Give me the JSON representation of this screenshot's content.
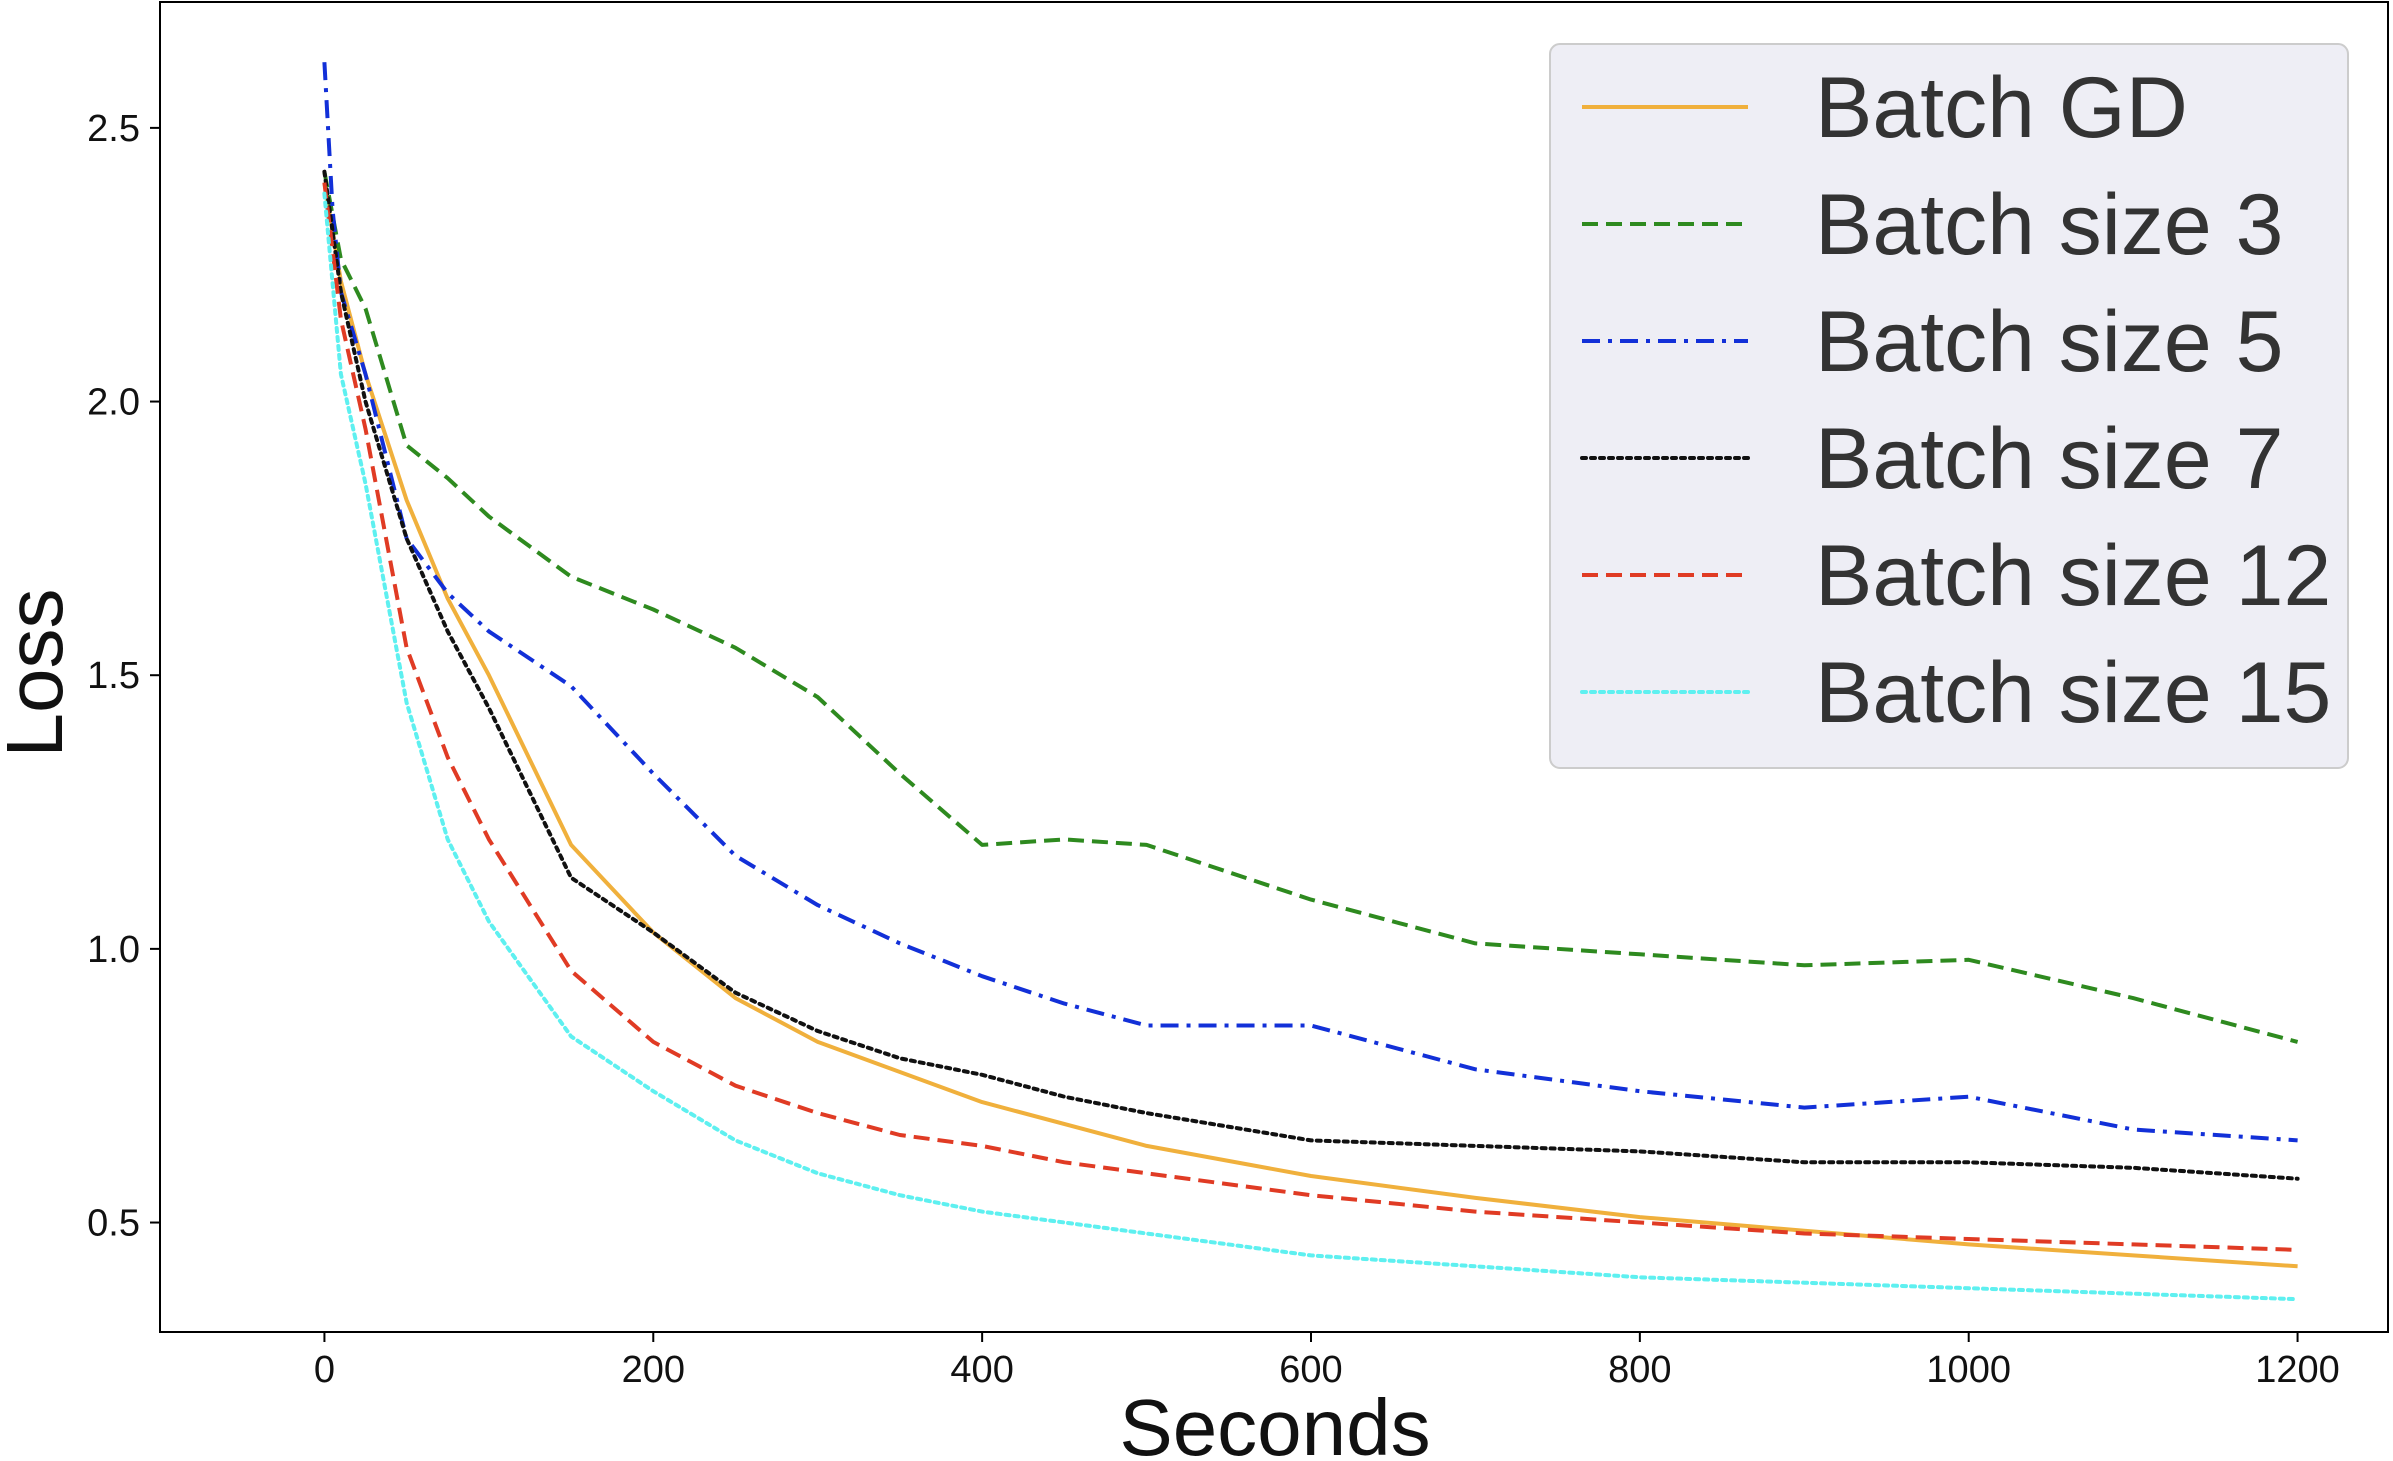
{
  "chart_data": {
    "type": "line",
    "title": "",
    "xlabel": "Seconds",
    "ylabel": "Loss",
    "xlim": [
      -100,
      1255
    ],
    "ylim": [
      0.3,
      2.73
    ],
    "xticks": [
      0,
      200,
      400,
      600,
      800,
      1000,
      1200
    ],
    "xtick_labels": [
      "0",
      "200",
      "400",
      "600",
      "800",
      "1000",
      "1200"
    ],
    "yticks": [
      0.5,
      1.0,
      1.5,
      2.0,
      2.5
    ],
    "ytick_labels": [
      "0.5",
      "1.0",
      "1.5",
      "2.0",
      "2.5"
    ],
    "grid": false,
    "legend_position": "top-right",
    "series": [
      {
        "name": "Batch GD",
        "color": "#f0b03c",
        "dash": "solid",
        "x": [
          0,
          10,
          25,
          50,
          75,
          100,
          150,
          200,
          250,
          300,
          400,
          500,
          600,
          700,
          800,
          900,
          1000,
          1100,
          1200
        ],
        "y": [
          2.4,
          2.22,
          2.05,
          1.82,
          1.64,
          1.5,
          1.19,
          1.03,
          0.91,
          0.83,
          0.72,
          0.64,
          0.585,
          0.545,
          0.51,
          0.485,
          0.46,
          0.44,
          0.42
        ]
      },
      {
        "name": "Batch size 3",
        "color": "#2e8a1f",
        "dash": "dashed",
        "x": [
          0,
          10,
          25,
          50,
          75,
          100,
          150,
          200,
          250,
          300,
          350,
          400,
          450,
          500,
          600,
          700,
          800,
          900,
          1000,
          1100,
          1200
        ],
        "y": [
          2.42,
          2.26,
          2.17,
          1.92,
          1.86,
          1.79,
          1.68,
          1.62,
          1.55,
          1.46,
          1.32,
          1.19,
          1.2,
          1.19,
          1.09,
          1.01,
          0.99,
          0.97,
          0.98,
          0.91,
          0.83
        ]
      },
      {
        "name": "Batch size 5",
        "color": "#1230d8",
        "dash": "dashdot",
        "x": [
          0,
          5,
          10,
          25,
          50,
          75,
          100,
          150,
          200,
          250,
          300,
          350,
          400,
          450,
          500,
          600,
          700,
          800,
          900,
          1000,
          1100,
          1200
        ],
        "y": [
          2.62,
          2.35,
          2.2,
          2.05,
          1.75,
          1.65,
          1.58,
          1.48,
          1.32,
          1.17,
          1.08,
          1.01,
          0.95,
          0.9,
          0.86,
          0.86,
          0.78,
          0.74,
          0.71,
          0.73,
          0.67,
          0.65
        ]
      },
      {
        "name": "Batch size 7",
        "color": "#111111",
        "dash": "dotted",
        "x": [
          0,
          10,
          25,
          50,
          75,
          100,
          150,
          200,
          250,
          300,
          350,
          400,
          450,
          500,
          600,
          700,
          800,
          900,
          1000,
          1100,
          1200
        ],
        "y": [
          2.42,
          2.2,
          2.0,
          1.75,
          1.58,
          1.44,
          1.13,
          1.03,
          0.92,
          0.85,
          0.8,
          0.77,
          0.73,
          0.7,
          0.65,
          0.64,
          0.63,
          0.61,
          0.61,
          0.6,
          0.58
        ]
      },
      {
        "name": "Batch size 12",
        "color": "#e03b24",
        "dash": "dashed",
        "x": [
          0,
          10,
          25,
          50,
          75,
          100,
          150,
          200,
          250,
          300,
          350,
          400,
          450,
          500,
          600,
          700,
          800,
          900,
          1000,
          1100,
          1200
        ],
        "y": [
          2.4,
          2.15,
          1.95,
          1.55,
          1.35,
          1.2,
          0.96,
          0.83,
          0.75,
          0.7,
          0.66,
          0.64,
          0.61,
          0.59,
          0.55,
          0.52,
          0.5,
          0.48,
          0.47,
          0.46,
          0.45
        ]
      },
      {
        "name": "Batch size 15",
        "color": "#5ef0f0",
        "dash": "dotted",
        "x": [
          0,
          10,
          25,
          50,
          75,
          100,
          150,
          200,
          250,
          300,
          350,
          400,
          450,
          500,
          600,
          700,
          800,
          900,
          1000,
          1100,
          1200
        ],
        "y": [
          2.38,
          2.05,
          1.85,
          1.45,
          1.2,
          1.05,
          0.84,
          0.74,
          0.65,
          0.59,
          0.55,
          0.52,
          0.5,
          0.48,
          0.44,
          0.42,
          0.4,
          0.39,
          0.38,
          0.37,
          0.36
        ]
      }
    ]
  }
}
